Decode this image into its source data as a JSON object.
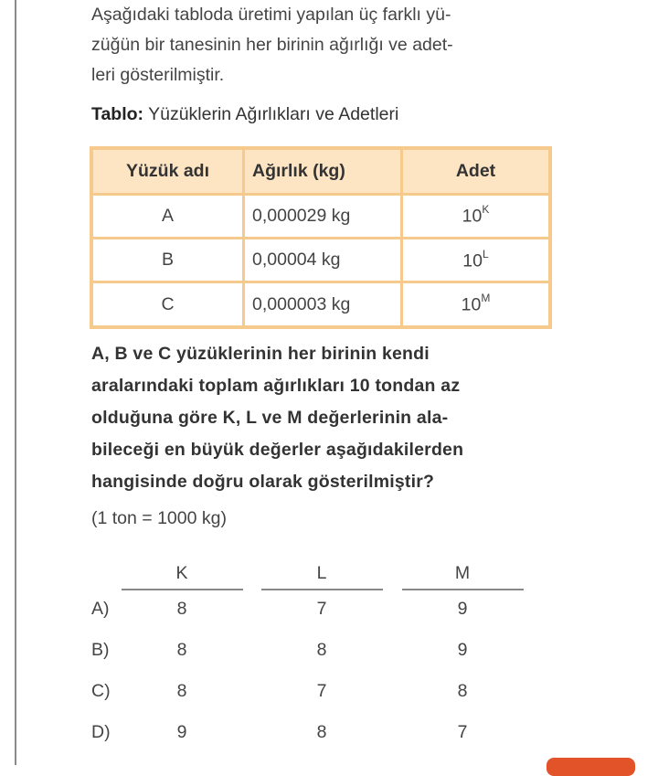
{
  "intro": [
    "Aşağıdaki tabloda üretimi yapılan üç farklı yü-",
    "züğün bir tanesinin her birinin ağırlığı ve adet-",
    "leri gösterilmiştir."
  ],
  "caption": {
    "label": "Tablo:",
    "text": " Yüzüklerin Ağırlıkları ve Adetleri"
  },
  "table": {
    "headers": [
      "Yüzük adı",
      "Ağırlık (kg)",
      "Adet"
    ],
    "rows": [
      {
        "name": "A",
        "weight": "0,000029 kg",
        "base": "10",
        "exp": "K"
      },
      {
        "name": "B",
        "weight": "0,00004 kg",
        "base": "10",
        "exp": "L"
      },
      {
        "name": "C",
        "weight": "0,000003 kg",
        "base": "10",
        "exp": "M"
      }
    ]
  },
  "question": [
    "A, B ve C yüzüklerinin her birinin kendi",
    "aralarındaki toplam ağırlıkları 10 tondan az",
    "olduğuna göre K, L ve M değerlerinin ala-",
    "bileceği en büyük değerler aşağıdakilerden",
    "hangisinde doğru olarak gösterilmiştir?"
  ],
  "note": "(1 ton = 1000 kg)",
  "options": {
    "headers": [
      "K",
      "L",
      "M"
    ],
    "rows": [
      {
        "label": "A)",
        "k": "8",
        "l": "7",
        "m": "9"
      },
      {
        "label": "B)",
        "k": "8",
        "l": "8",
        "m": "9"
      },
      {
        "label": "C)",
        "k": "8",
        "l": "7",
        "m": "8"
      },
      {
        "label": "D)",
        "k": "9",
        "l": "8",
        "m": "7"
      }
    ]
  },
  "colors": {
    "table_border": "#f6c98d",
    "table_header": "#fde5c4",
    "accent_button": "#e2532a"
  }
}
